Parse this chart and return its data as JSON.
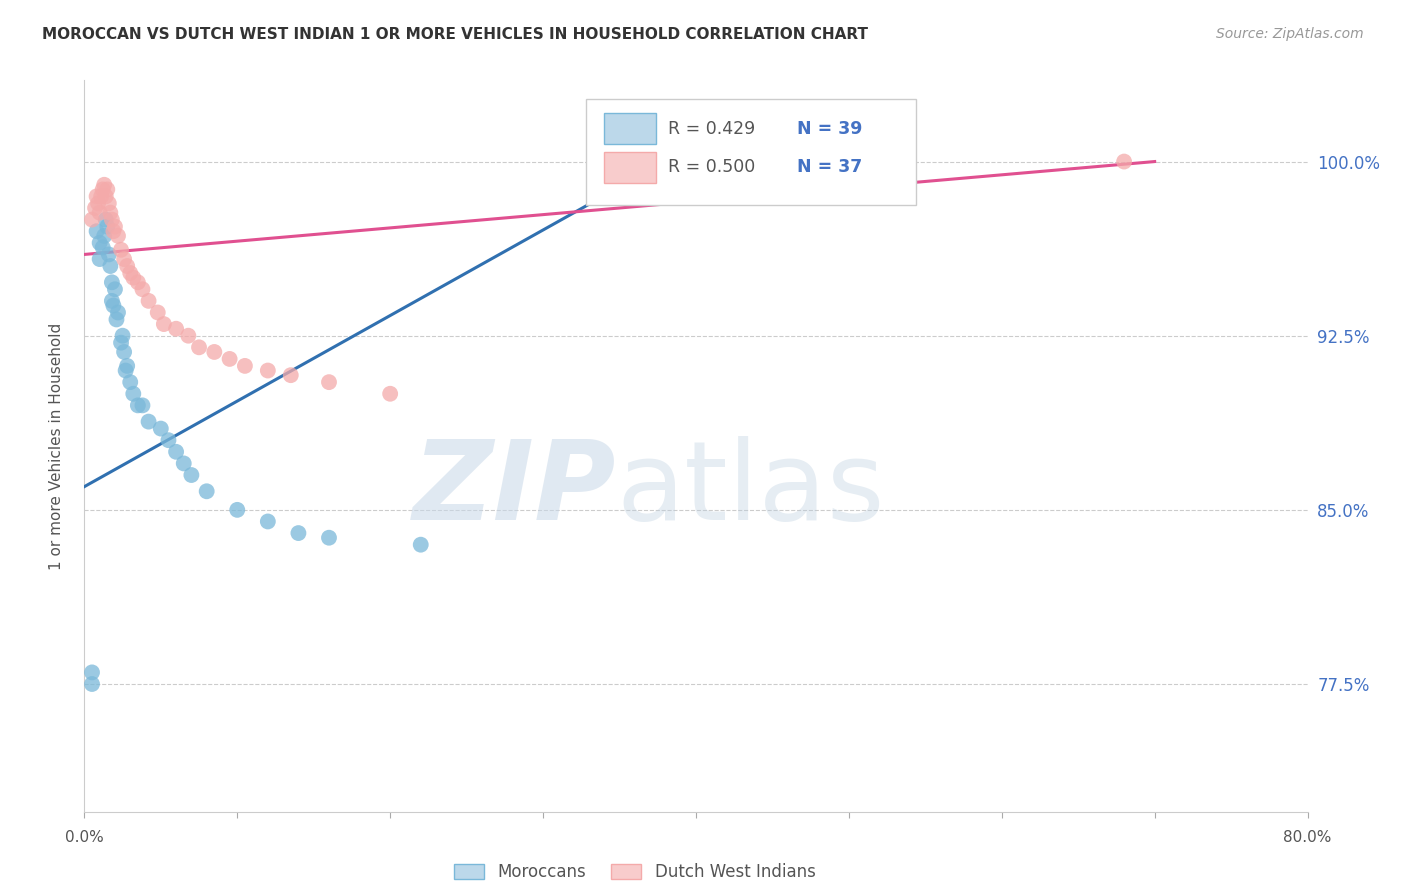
{
  "title": "MOROCCAN VS DUTCH WEST INDIAN 1 OR MORE VEHICLES IN HOUSEHOLD CORRELATION CHART",
  "source": "Source: ZipAtlas.com",
  "ylabel": "1 or more Vehicles in Household",
  "ytick_labels": [
    "100.0%",
    "92.5%",
    "85.0%",
    "77.5%"
  ],
  "ytick_values": [
    1.0,
    0.925,
    0.85,
    0.775
  ],
  "xmin": 0.0,
  "xmax": 0.8,
  "ymin": 0.72,
  "ymax": 1.035,
  "legend_blue_r": "R = 0.429",
  "legend_blue_n": "N = 39",
  "legend_pink_r": "R = 0.500",
  "legend_pink_n": "N = 37",
  "legend_label_blue": "Moroccans",
  "legend_label_pink": "Dutch West Indians",
  "blue_color": "#7ab8d9",
  "pink_color": "#f4aaaa",
  "blue_line_color": "#3070b0",
  "pink_line_color": "#e05090",
  "blue_x": [
    0.005,
    0.005,
    0.008,
    0.01,
    0.01,
    0.012,
    0.013,
    0.014,
    0.015,
    0.016,
    0.017,
    0.018,
    0.018,
    0.019,
    0.02,
    0.021,
    0.022,
    0.024,
    0.025,
    0.026,
    0.027,
    0.028,
    0.03,
    0.032,
    0.035,
    0.038,
    0.042,
    0.05,
    0.055,
    0.06,
    0.065,
    0.07,
    0.08,
    0.1,
    0.12,
    0.14,
    0.16,
    0.22,
    0.38
  ],
  "blue_y": [
    0.775,
    0.78,
    0.97,
    0.965,
    0.958,
    0.963,
    0.968,
    0.975,
    0.972,
    0.96,
    0.955,
    0.948,
    0.94,
    0.938,
    0.945,
    0.932,
    0.935,
    0.922,
    0.925,
    0.918,
    0.91,
    0.912,
    0.905,
    0.9,
    0.895,
    0.895,
    0.888,
    0.885,
    0.88,
    0.875,
    0.87,
    0.865,
    0.858,
    0.85,
    0.845,
    0.84,
    0.838,
    0.835,
    0.998
  ],
  "pink_x": [
    0.005,
    0.007,
    0.008,
    0.009,
    0.01,
    0.011,
    0.012,
    0.013,
    0.014,
    0.015,
    0.016,
    0.017,
    0.018,
    0.019,
    0.02,
    0.022,
    0.024,
    0.026,
    0.028,
    0.03,
    0.032,
    0.035,
    0.038,
    0.042,
    0.048,
    0.052,
    0.06,
    0.068,
    0.075,
    0.085,
    0.095,
    0.105,
    0.12,
    0.135,
    0.16,
    0.2,
    0.68
  ],
  "pink_y": [
    0.975,
    0.98,
    0.985,
    0.982,
    0.978,
    0.985,
    0.988,
    0.99,
    0.985,
    0.988,
    0.982,
    0.978,
    0.975,
    0.97,
    0.972,
    0.968,
    0.962,
    0.958,
    0.955,
    0.952,
    0.95,
    0.948,
    0.945,
    0.94,
    0.935,
    0.93,
    0.928,
    0.925,
    0.92,
    0.918,
    0.915,
    0.912,
    0.91,
    0.908,
    0.905,
    0.9,
    1.0
  ],
  "blue_trendline_x": [
    0.0,
    0.38
  ],
  "blue_trendline_y": [
    0.86,
    1.0
  ],
  "pink_trendline_x": [
    0.0,
    0.7
  ],
  "pink_trendline_y": [
    0.96,
    1.0
  ]
}
